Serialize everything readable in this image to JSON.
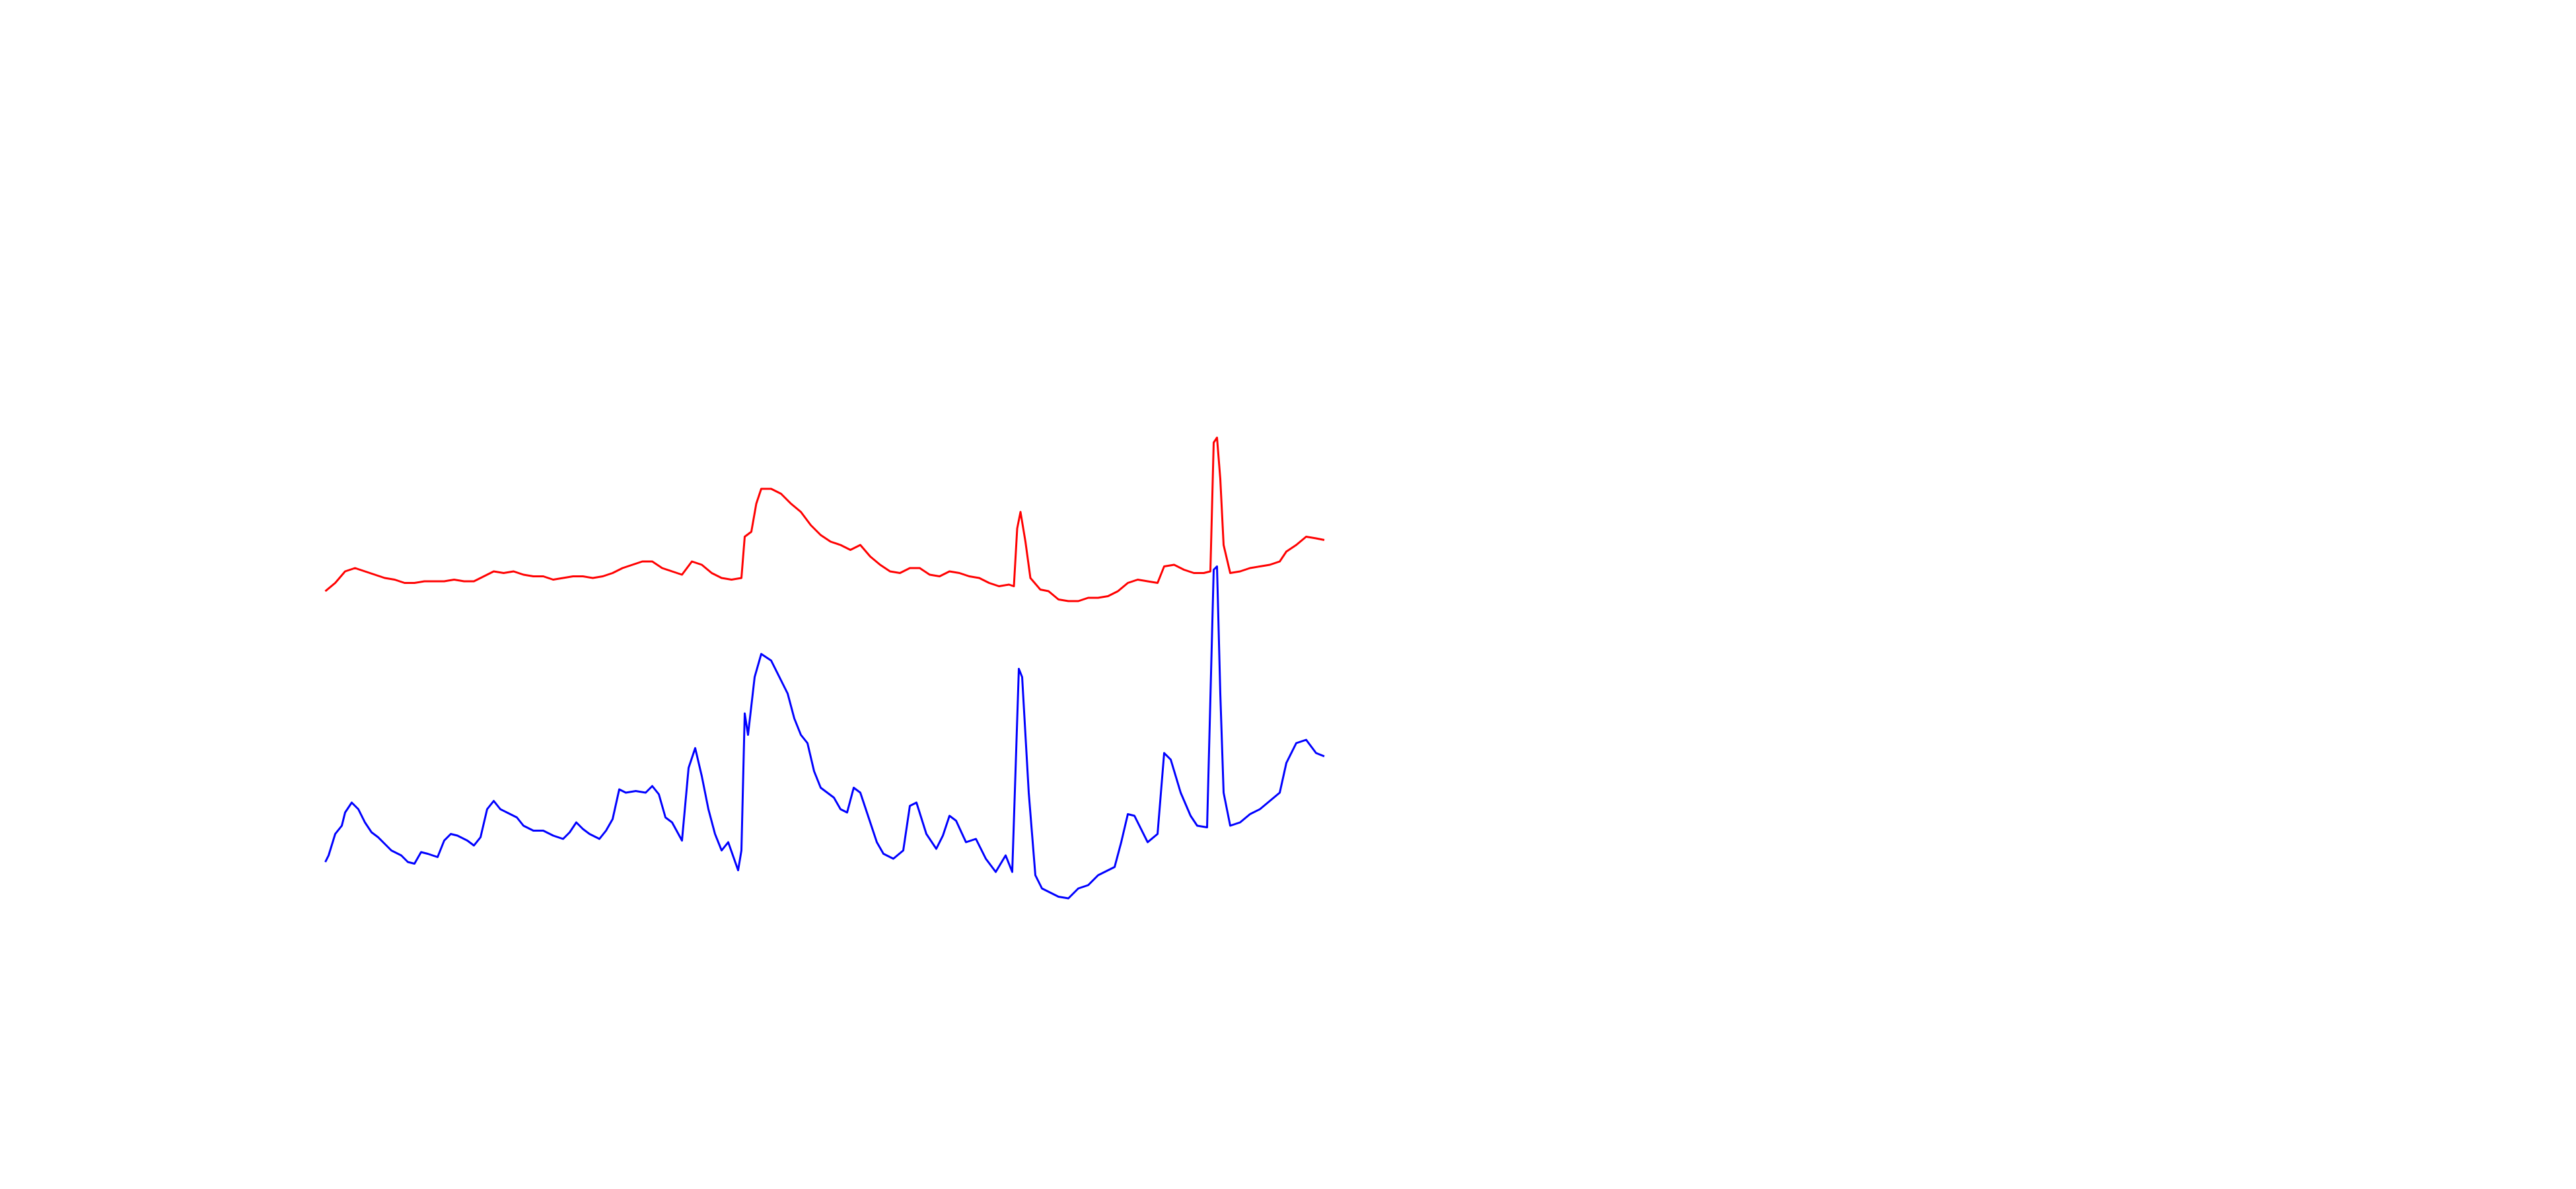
{
  "chart_data": {
    "type": "line",
    "xlim": [
      0,
      1560
    ],
    "ylim": [
      0,
      720
    ],
    "series": [
      {
        "color": "#ff0000",
        "x": [
          197,
          203,
          209,
          215,
          221,
          227,
          233,
          239,
          245,
          251,
          257,
          263,
          269,
          275,
          281,
          287,
          293,
          299,
          305,
          311,
          317,
          323,
          329,
          335,
          341,
          347,
          353,
          359,
          365,
          371,
          377,
          383,
          389,
          395,
          401,
          407,
          413,
          419,
          425,
          431,
          437,
          443,
          449,
          451,
          455,
          458,
          461,
          467,
          473,
          479,
          485,
          491,
          497,
          503,
          509,
          515,
          521,
          527,
          533,
          539,
          545,
          551,
          557,
          563,
          569,
          575,
          581,
          587,
          593,
          599,
          605,
          611,
          614,
          616,
          618,
          621,
          624,
          630,
          635,
          641,
          647,
          653,
          659,
          665,
          671,
          677,
          683,
          689,
          695,
          701,
          705,
          711,
          717,
          723,
          729,
          733,
          735,
          737,
          739,
          741,
          745,
          751,
          757,
          763,
          769,
          775,
          779,
          785,
          791,
          797,
          802
        ],
        "values": [
          362,
          367,
          374,
          376,
          374,
          372,
          370,
          369,
          367,
          367,
          368,
          368,
          368,
          369,
          368,
          368,
          371,
          374,
          373,
          374,
          372,
          371,
          371,
          369,
          370,
          371,
          371,
          370,
          371,
          373,
          376,
          378,
          380,
          380,
          376,
          374,
          372,
          380,
          378,
          373,
          370,
          369,
          370,
          395,
          398,
          415,
          424,
          424,
          421,
          415,
          410,
          402,
          396,
          392,
          390,
          387,
          390,
          383,
          378,
          374,
          373,
          376,
          376,
          372,
          371,
          374,
          373,
          371,
          370,
          367,
          365,
          366,
          365,
          400,
          410,
          392,
          370,
          363,
          362,
          357,
          356,
          356,
          358,
          358,
          359,
          362,
          367,
          369,
          368,
          367,
          377,
          378,
          375,
          373,
          373,
          374,
          452,
          455,
          430,
          390,
          373,
          374,
          376,
          377,
          378,
          380,
          386,
          390,
          395,
          394,
          393
        ]
      },
      {
        "color": "#0000ff",
        "x": [
          197,
          199,
          203,
          207,
          209,
          213,
          217,
          221,
          225,
          229,
          233,
          237,
          243,
          247,
          251,
          255,
          259,
          265,
          269,
          273,
          277,
          283,
          287,
          291,
          295,
          299,
          303,
          307,
          313,
          317,
          323,
          329,
          335,
          341,
          345,
          349,
          353,
          357,
          363,
          367,
          371,
          375,
          379,
          385,
          391,
          395,
          399,
          403,
          407,
          413,
          417,
          421,
          425,
          429,
          433,
          437,
          441,
          447,
          449,
          451,
          453,
          457,
          461,
          467,
          473,
          477,
          481,
          485,
          489,
          493,
          497,
          501,
          505,
          509,
          513,
          517,
          521,
          525,
          531,
          535,
          541,
          547,
          551,
          555,
          561,
          567,
          571,
          575,
          579,
          585,
          591,
          597,
          603,
          609,
          613,
          617,
          619,
          623,
          627,
          631,
          635,
          641,
          647,
          653,
          659,
          665,
          671,
          675,
          679,
          683,
          687,
          691,
          695,
          701,
          705,
          709,
          715,
          721,
          725,
          731,
          735,
          737,
          739,
          741,
          745,
          751,
          757,
          763,
          769,
          775,
          779,
          785,
          791,
          797,
          802
        ],
        "values": [
          198,
          202,
          215,
          220,
          228,
          234,
          230,
          222,
          216,
          213,
          209,
          205,
          202,
          198,
          197,
          204,
          203,
          201,
          211,
          215,
          214,
          211,
          208,
          213,
          230,
          235,
          230,
          228,
          225,
          220,
          217,
          217,
          214,
          212,
          216,
          222,
          218,
          215,
          212,
          217,
          224,
          242,
          240,
          241,
          240,
          244,
          239,
          225,
          222,
          211,
          255,
          267,
          250,
          230,
          215,
          205,
          210,
          193,
          205,
          288,
          275,
          310,
          324,
          320,
          308,
          300,
          285,
          275,
          270,
          253,
          243,
          240,
          237,
          230,
          228,
          243,
          240,
          228,
          210,
          203,
          200,
          205,
          232,
          234,
          215,
          206,
          214,
          226,
          223,
          210,
          212,
          200,
          192,
          202,
          192,
          315,
          310,
          240,
          190,
          182,
          180,
          177,
          176,
          182,
          184,
          190,
          193,
          195,
          210,
          227,
          226,
          218,
          210,
          215,
          264,
          260,
          240,
          226,
          220,
          219,
          375,
          377,
          300,
          240,
          220,
          222,
          227,
          230,
          235,
          240,
          258,
          270,
          272,
          264,
          262
        ]
      }
    ]
  }
}
